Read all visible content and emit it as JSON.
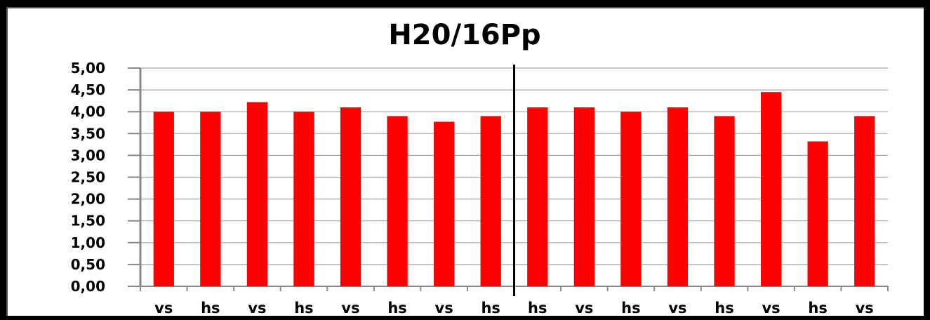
{
  "chart_data": {
    "type": "bar",
    "title": "H20/16Pp",
    "categories": [
      "vs",
      "hs",
      "vs",
      "hs",
      "vs",
      "hs",
      "vs",
      "hs",
      "hs",
      "vs",
      "hs",
      "vs",
      "hs",
      "vs",
      "hs",
      "vs"
    ],
    "values": [
      4.0,
      4.0,
      4.22,
      4.0,
      4.1,
      3.9,
      3.77,
      3.9,
      4.1,
      4.1,
      4.0,
      4.1,
      3.9,
      4.45,
      3.32,
      3.9
    ],
    "yticks": [
      "0,00",
      "0,50",
      "1,00",
      "1,50",
      "2,00",
      "2,50",
      "3,00",
      "3,50",
      "4,00",
      "4,50",
      "5,00"
    ],
    "ylim": [
      0,
      5
    ],
    "xlabel": "",
    "ylabel": "",
    "grid": true,
    "legend": "none",
    "colors": {
      "bar": "#ff0000",
      "grid": "#a6a6a6",
      "axis": "#888888",
      "divider": "#000000"
    },
    "divider_after_category": 8
  }
}
